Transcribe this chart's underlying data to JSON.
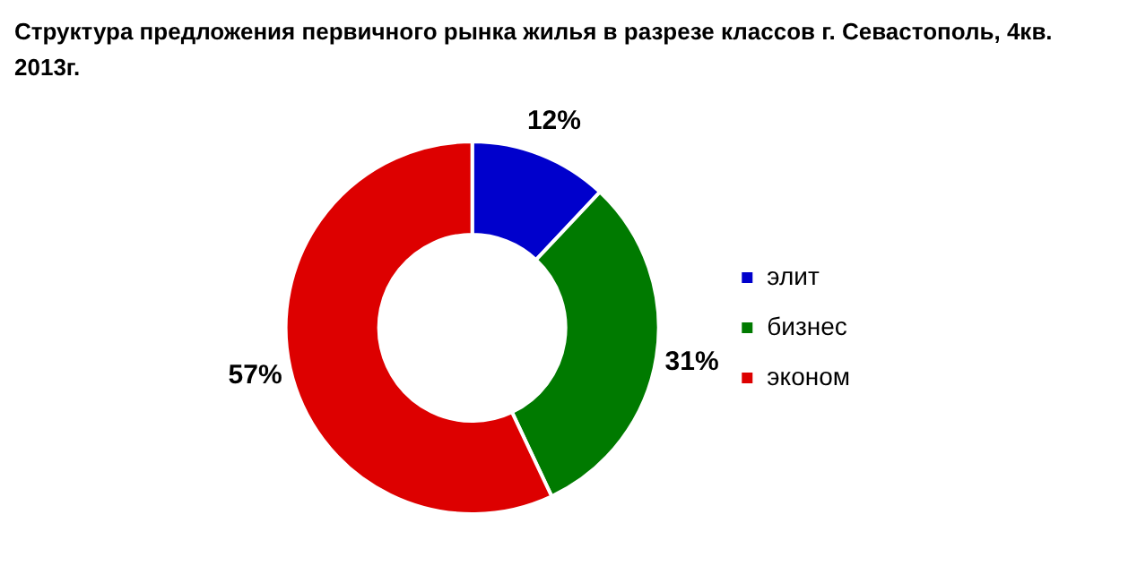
{
  "chart_data": {
    "type": "donut",
    "title": "Структура предложения первичного рынка жилья в разрезе классов г. Севастополь, 4кв. 2013г.",
    "categories": [
      "элит",
      "бизнес",
      "эконом"
    ],
    "values": [
      12,
      31,
      57
    ],
    "colors": [
      "#0000cc",
      "#007a00",
      "#dd0000"
    ],
    "value_labels": [
      "12%",
      "31%",
      "57%"
    ],
    "legend": "right"
  }
}
